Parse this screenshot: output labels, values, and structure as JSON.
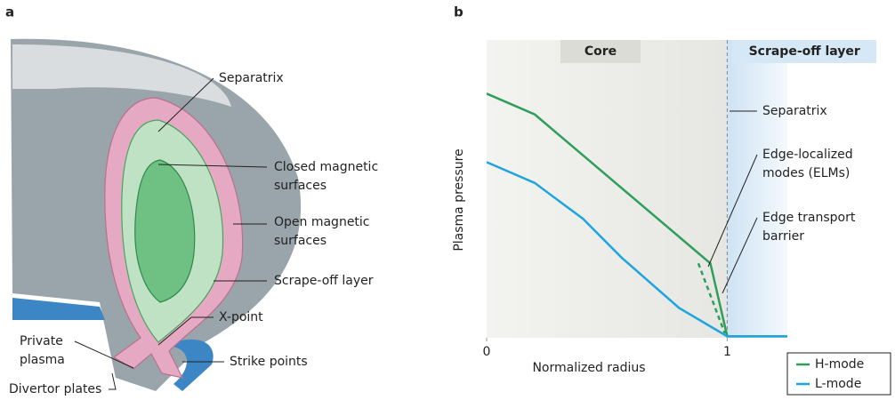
{
  "panel_a": {
    "label": "a",
    "labels": [
      {
        "lines": [
          "Separatrix"
        ]
      },
      {
        "lines": [
          "Closed magnetic",
          "surfaces"
        ]
      },
      {
        "lines": [
          "Open magnetic",
          "surfaces"
        ]
      },
      {
        "lines": [
          "Scrape-off layer"
        ]
      },
      {
        "lines": [
          "X-point"
        ]
      },
      {
        "lines": [
          "Private",
          "plasma"
        ]
      },
      {
        "lines": [
          "Strike points"
        ]
      },
      {
        "lines": [
          "Divertor plates"
        ]
      }
    ]
  },
  "chart_data": {
    "type": "line",
    "panel_label": "b",
    "x_label": "Normalized radius",
    "y_label": "Plasma pressure",
    "xlim": [
      0,
      1.25
    ],
    "xticks": [
      0,
      1
    ],
    "ylim": [
      0,
      1
    ],
    "regions": [
      "Core",
      "Scrape-off layer"
    ],
    "separatrix_x": 1,
    "series": [
      {
        "name": "H-mode",
        "color": "#2e9e5b",
        "x": [
          0,
          0.2,
          0.93,
          1,
          1.25
        ],
        "values": [
          0.82,
          0.75,
          0.25,
          0.005,
          0.005
        ]
      },
      {
        "name": "L-mode",
        "color": "#1ea5e0",
        "x": [
          0,
          0.2,
          0.4,
          0.56,
          0.8,
          1,
          1.25
        ],
        "values": [
          0.59,
          0.52,
          0.4,
          0.27,
          0.1,
          0.005,
          0.005
        ]
      }
    ],
    "elm_dash": {
      "x": [
        0.88,
        0.99
      ],
      "values": [
        0.25,
        0.015
      ]
    },
    "annotations": [
      {
        "lines": [
          "Separatrix"
        ]
      },
      {
        "lines": [
          "Edge-localized",
          "modes (ELMs)"
        ]
      },
      {
        "lines": [
          "Edge transport",
          "barrier"
        ]
      }
    ],
    "legend": "lower right"
  }
}
